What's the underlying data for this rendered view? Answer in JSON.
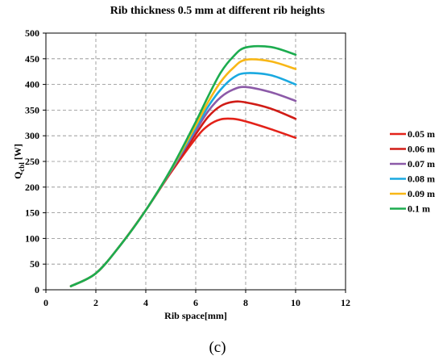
{
  "chart_data": {
    "type": "line",
    "title": "Rib thickness  0.5 mm at different  rib heights",
    "xlabel": "Rib space[mm]",
    "ylabel_main": "Q",
    "ylabel_sub": "cbl",
    "ylabel_unit": " [W]",
    "xlim": [
      0,
      12
    ],
    "ylim": [
      0,
      500
    ],
    "xticks": [
      0,
      2,
      4,
      6,
      8,
      10,
      12
    ],
    "yticks": [
      0,
      50,
      100,
      150,
      200,
      250,
      300,
      350,
      400,
      450,
      500
    ],
    "grid": true,
    "legend_position": "right",
    "caption": "(c)",
    "series": [
      {
        "name": "0.05 m",
        "color": "#e32219",
        "x": [
          1,
          2,
          3,
          4,
          5,
          6,
          6.5,
          7,
          7.5,
          8,
          9,
          10
        ],
        "y": [
          7,
          32,
          88,
          155,
          228,
          295,
          320,
          332,
          333,
          328,
          313,
          296
        ]
      },
      {
        "name": "0.06 m",
        "color": "#d01c16",
        "x": [
          1,
          2,
          3,
          4,
          5,
          6,
          6.5,
          7,
          7.5,
          8,
          9,
          10
        ],
        "y": [
          7,
          32,
          88,
          155,
          230,
          303,
          337,
          358,
          366,
          365,
          353,
          333
        ]
      },
      {
        "name": "0.07 m",
        "color": "#8c5aa8",
        "x": [
          1,
          2,
          3,
          4,
          5,
          6,
          6.5,
          7,
          7.5,
          8,
          9,
          10
        ],
        "y": [
          7,
          32,
          88,
          155,
          231,
          310,
          348,
          375,
          390,
          395,
          385,
          368
        ]
      },
      {
        "name": "0.08 m",
        "color": "#1aa9e0",
        "x": [
          1,
          2,
          3,
          4,
          5,
          6,
          6.5,
          7,
          7.5,
          8,
          9,
          10
        ],
        "y": [
          7,
          32,
          88,
          155,
          232,
          315,
          357,
          390,
          413,
          422,
          418,
          400
        ]
      },
      {
        "name": "0.09 m",
        "color": "#f8b716",
        "x": [
          1,
          2,
          3,
          4,
          5,
          6,
          6.5,
          7,
          7.5,
          8,
          9,
          10
        ],
        "y": [
          7,
          32,
          88,
          155,
          233,
          320,
          366,
          405,
          432,
          448,
          445,
          430
        ]
      },
      {
        "name": "0.1 m",
        "color": "#1cac4f",
        "x": [
          1,
          2,
          3,
          4,
          5,
          6,
          6.5,
          7,
          7.5,
          8,
          9,
          10
        ],
        "y": [
          7,
          32,
          88,
          155,
          234,
          327,
          377,
          423,
          454,
          472,
          473,
          458
        ]
      }
    ]
  }
}
